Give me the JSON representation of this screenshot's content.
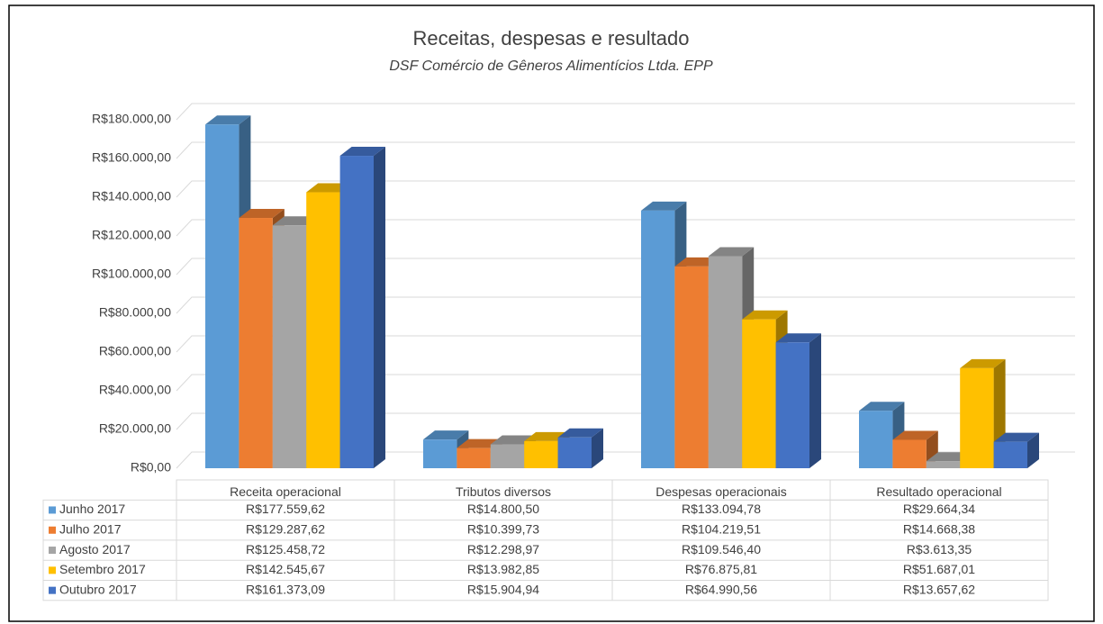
{
  "chart_data": {
    "type": "bar3d",
    "title": "Receitas, despesas e resultado",
    "subtitle": "DSF Comércio de Gêneros Alimentícios Ltda. EPP",
    "categories": [
      "Receita operacional",
      "Tributos diversos",
      "Despesas operacionais",
      "Resultado operacional"
    ],
    "series": [
      {
        "name": "Junho 2017",
        "color": "#5b9bd5",
        "values": [
          177559.62,
          14800.5,
          133094.78,
          29664.34
        ],
        "value_labels": [
          "R$177.559,62",
          "R$14.800,50",
          "R$133.094,78",
          "R$29.664,34"
        ]
      },
      {
        "name": "Julho 2017",
        "color": "#ed7d31",
        "values": [
          129287.62,
          10399.73,
          104219.51,
          14668.38
        ],
        "value_labels": [
          "R$129.287,62",
          "R$10.399,73",
          "R$104.219,51",
          "R$14.668,38"
        ]
      },
      {
        "name": "Agosto 2017",
        "color": "#a5a5a5",
        "values": [
          125458.72,
          12298.97,
          109546.4,
          3613.35
        ],
        "value_labels": [
          "R$125.458,72",
          "R$12.298,97",
          "R$109.546,40",
          "R$3.613,35"
        ]
      },
      {
        "name": "Setembro 2017",
        "color": "#ffc000",
        "values": [
          142545.67,
          13982.85,
          76875.81,
          51687.01
        ],
        "value_labels": [
          "R$142.545,67",
          "R$13.982,85",
          "R$76.875,81",
          "R$51.687,01"
        ]
      },
      {
        "name": "Outubro 2017",
        "color": "#4472c4",
        "values": [
          161373.09,
          15904.94,
          64990.56,
          13657.62
        ],
        "value_labels": [
          "R$161.373,09",
          "R$15.904,94",
          "R$64.990,56",
          "R$13.657,62"
        ]
      }
    ],
    "ylim": [
      0,
      180000
    ],
    "yticks": [
      {
        "value": 0,
        "label": "R$0,00"
      },
      {
        "value": 20000,
        "label": "R$20.000,00"
      },
      {
        "value": 40000,
        "label": "R$40.000,00"
      },
      {
        "value": 60000,
        "label": "R$60.000,00"
      },
      {
        "value": 80000,
        "label": "R$80.000,00"
      },
      {
        "value": 100000,
        "label": "R$100.000,00"
      },
      {
        "value": 120000,
        "label": "R$120.000,00"
      },
      {
        "value": 140000,
        "label": "R$140.000,00"
      },
      {
        "value": 160000,
        "label": "R$160.000,00"
      },
      {
        "value": 180000,
        "label": "R$180.000,00"
      }
    ],
    "grid": true,
    "legend": "table"
  }
}
